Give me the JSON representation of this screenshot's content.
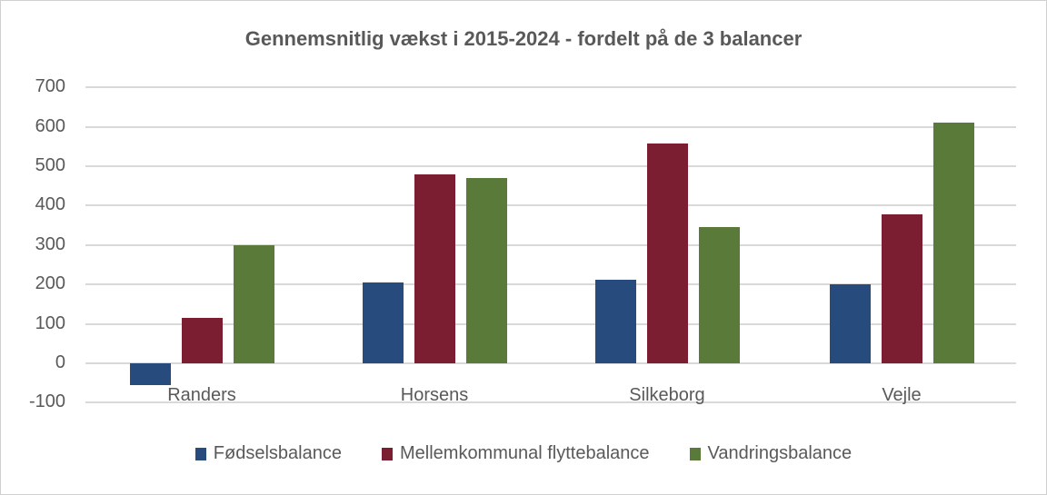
{
  "chart_data": {
    "type": "bar",
    "title": "Gennemsnitlig vækst i 2015-2024 - fordelt på de 3 balancer",
    "xlabel": "",
    "ylabel": "",
    "ylim": [
      -100,
      700
    ],
    "yticks": [
      700,
      600,
      500,
      400,
      300,
      200,
      100,
      0,
      -100
    ],
    "ytick_labels": [
      "700",
      "600",
      "500",
      "400",
      "300",
      "200",
      "100",
      "0",
      "-100"
    ],
    "grid": true,
    "legend_position": "bottom",
    "categories": [
      "Randers",
      "Horsens",
      "Silkeborg",
      "Vejle"
    ],
    "series": [
      {
        "name": "Fødselsbalance",
        "color": "#284b7e",
        "values": [
          -55,
          205,
          212,
          200
        ]
      },
      {
        "name": "Mellemkommunal flyttebalance",
        "color": "#7b1e31",
        "values": [
          115,
          480,
          557,
          378
        ]
      },
      {
        "name": "Vandringsbalance",
        "color": "#5a7a3a",
        "values": [
          300,
          470,
          345,
          610
        ]
      }
    ]
  }
}
